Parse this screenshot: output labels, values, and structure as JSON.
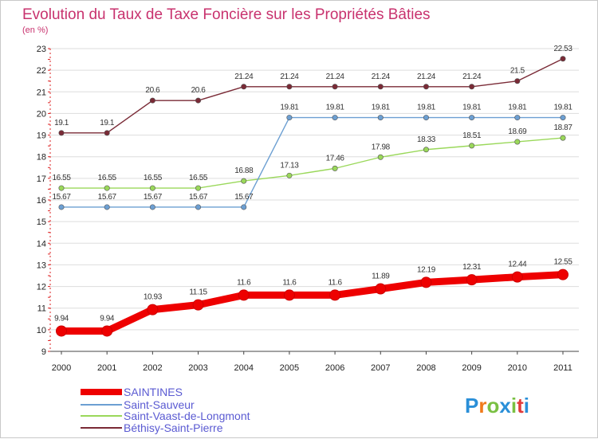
{
  "chart_data": {
    "type": "line",
    "title": "Evolution du Taux de Taxe Foncière sur les Propriétés Bâties",
    "ylabel": "(en %)",
    "ylim": [
      9,
      23
    ],
    "yticks": [
      9,
      10,
      11,
      12,
      13,
      14,
      15,
      16,
      17,
      18,
      19,
      20,
      21,
      22,
      23
    ],
    "x": [
      "2000",
      "2001",
      "2002",
      "2003",
      "2004",
      "2005",
      "2006",
      "2007",
      "2008",
      "2009",
      "2010",
      "2011"
    ],
    "grid": "horizontal",
    "legend_position": "bottom-left",
    "series": [
      {
        "name": "SAINTINES",
        "color": "#ee0000",
        "values": [
          9.94,
          9.94,
          10.93,
          11.15,
          11.6,
          11.6,
          11.6,
          11.89,
          12.19,
          12.31,
          12.44,
          12.55
        ],
        "labels": [
          "9.94",
          "9.94",
          "10.93",
          "11.15",
          "11.6",
          "11.6",
          "11.6",
          "11.89",
          "12.19",
          "12.31",
          "12.44",
          "12.55"
        ]
      },
      {
        "name": "Saint-Sauveur",
        "color": "#6c9fd2",
        "values": [
          15.67,
          15.67,
          15.67,
          15.67,
          15.67,
          19.81,
          19.81,
          19.81,
          19.81,
          19.81,
          19.81,
          19.81
        ],
        "labels": [
          "15.67",
          "15.67",
          "15.67",
          "15.67",
          "15.67",
          "19.81",
          "19.81",
          "19.81",
          "19.81",
          "19.81",
          "19.81",
          "19.81"
        ]
      },
      {
        "name": "Saint-Vaast-de-Longmont",
        "color": "#9ad85a",
        "values": [
          16.55,
          16.55,
          16.55,
          16.55,
          16.88,
          17.13,
          17.46,
          17.98,
          18.33,
          18.51,
          18.69,
          18.87
        ],
        "labels": [
          "16.55",
          "16.55",
          "16.55",
          "16.55",
          "16.88",
          "17.13",
          "17.46",
          "17.98",
          "18.33",
          "18.51",
          "18.69",
          "18.87"
        ]
      },
      {
        "name": "Béthisy-Saint-Pierre",
        "color": "#7a2a36",
        "values": [
          19.1,
          19.1,
          20.6,
          20.6,
          21.24,
          21.24,
          21.24,
          21.24,
          21.24,
          21.24,
          21.5,
          22.53
        ],
        "labels": [
          "19.1",
          "19.1",
          "20.6",
          "20.6",
          "21.24",
          "21.24",
          "21.24",
          "21.24",
          "21.24",
          "21.24",
          "21.5",
          "22.53"
        ]
      }
    ]
  },
  "logo": {
    "text": "Proxiti"
  }
}
